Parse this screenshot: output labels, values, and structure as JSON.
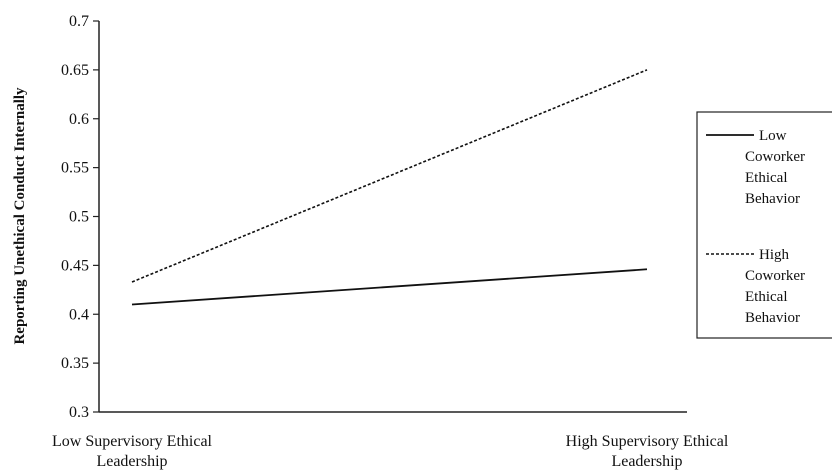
{
  "chart_data": {
    "type": "line",
    "categories": [
      [
        "Low Supervisory Ethical",
        "Leadership"
      ],
      [
        "High Supervisory Ethical",
        "Leadership"
      ]
    ],
    "ylabel": "Reporting Unethical Conduct Internally",
    "xlabel": "",
    "ylim": [
      0.3,
      0.7
    ],
    "yticks": [
      "0.3",
      "0.35",
      "0.4",
      "0.45",
      "0.5",
      "0.55",
      "0.6",
      "0.65",
      "0.7"
    ],
    "grid": false,
    "legend_position": "right",
    "series": [
      {
        "name": [
          "Low",
          "Coworker",
          "Ethical",
          "Behavior"
        ],
        "values": [
          0.41,
          0.446
        ],
        "style": "solid",
        "color": "#111111"
      },
      {
        "name": [
          "High",
          "Coworker",
          "Ethical",
          "Behavior"
        ],
        "values": [
          0.433,
          0.65
        ],
        "style": "dotted",
        "color": "#111111"
      }
    ]
  }
}
